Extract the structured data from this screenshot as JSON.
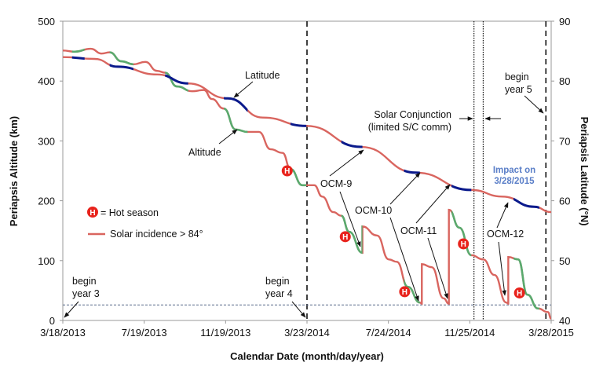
{
  "chart_data": {
    "type": "line",
    "xlabel": "Calendar Date (month/day/year)",
    "ylabel_left": "Periapsis Altitude (km)",
    "ylabel_right": "Periapsis Latitude (°N)",
    "xlim": [
      "2013-03-18",
      "2015-03-28"
    ],
    "ylim_left": [
      0,
      500
    ],
    "ylim_right": [
      40,
      90
    ],
    "x_ticks": [
      "3/18/2013",
      "7/19/2013",
      "11/19/2013",
      "3/23/2014",
      "7/24/2014",
      "11/25/2014",
      "3/28/2015"
    ],
    "y_ticks_left": [
      "0",
      "100",
      "200",
      "300",
      "400",
      "500"
    ],
    "y_ticks_right": [
      "40",
      "50",
      "60",
      "70",
      "80",
      "90"
    ],
    "grid": false,
    "colors": {
      "normal": "#d9655f",
      "hot_altitude": "#5aaa6e",
      "hot_latitude": "#0a1a8c",
      "impact_text": "#5b7fc8",
      "hot_marker": "#e8231c"
    },
    "series": [
      {
        "name": "Altitude",
        "axis": "left",
        "points": [
          [
            "2013-03-18",
            451
          ],
          [
            "2013-04-05",
            449
          ],
          [
            "2013-04-29",
            454
          ],
          [
            "2013-05-16",
            446
          ],
          [
            "2013-05-28",
            448
          ],
          [
            "2013-06-15",
            433
          ],
          [
            "2013-07-03",
            428
          ],
          [
            "2013-07-21",
            432
          ],
          [
            "2013-08-08",
            417
          ],
          [
            "2013-08-20",
            414
          ],
          [
            "2013-09-07",
            391
          ],
          [
            "2013-09-30",
            383
          ],
          [
            "2013-10-18",
            385
          ],
          [
            "2013-10-30",
            370
          ],
          [
            "2013-11-17",
            354
          ],
          [
            "2013-12-05",
            319
          ],
          [
            "2013-12-23",
            315
          ],
          [
            "2014-01-09",
            315
          ],
          [
            "2014-01-27",
            286
          ],
          [
            "2014-02-14",
            280
          ],
          [
            "2014-02-26",
            253
          ],
          [
            "2014-03-16",
            226
          ],
          [
            "2014-04-03",
            226
          ],
          [
            "2014-04-15",
            207
          ],
          [
            "2014-05-02",
            181
          ],
          [
            "2014-05-14",
            175
          ],
          [
            "2014-05-26",
            148
          ],
          [
            "2014-06-15",
            113
          ],
          [
            "2014-06-15",
            157
          ],
          [
            "2014-07-07",
            142
          ],
          [
            "2014-07-25",
            102
          ],
          [
            "2014-08-06",
            98
          ],
          [
            "2014-08-23",
            56
          ],
          [
            "2014-09-10",
            30
          ],
          [
            "2014-09-13",
            28
          ],
          [
            "2014-09-13",
            94
          ],
          [
            "2014-09-28",
            89
          ],
          [
            "2014-10-16",
            37
          ],
          [
            "2014-10-24",
            28
          ],
          [
            "2014-10-24",
            185
          ],
          [
            "2014-11-09",
            155
          ],
          [
            "2014-11-27",
            109
          ],
          [
            "2014-12-15",
            102
          ],
          [
            "2015-01-01",
            76
          ],
          [
            "2015-01-19",
            30
          ],
          [
            "2015-01-22",
            28
          ],
          [
            "2015-01-22",
            106
          ],
          [
            "2015-02-06",
            102
          ],
          [
            "2015-02-20",
            43
          ],
          [
            "2015-03-08",
            20
          ],
          [
            "2015-03-23",
            14
          ],
          [
            "2015-03-28",
            3
          ]
        ]
      },
      {
        "name": "Latitude",
        "axis": "right",
        "points": [
          [
            "2013-03-18",
            84.0
          ],
          [
            "2013-05-05",
            83.7
          ],
          [
            "2013-06-09",
            82.4
          ],
          [
            "2013-08-08",
            81.1
          ],
          [
            "2013-09-24",
            79.6
          ],
          [
            "2013-11-23",
            77.1
          ],
          [
            "2014-01-15",
            73.9
          ],
          [
            "2014-03-22",
            72.5
          ],
          [
            "2014-06-13",
            69.0
          ],
          [
            "2014-09-04",
            64.7
          ],
          [
            "2014-11-27",
            61.8
          ],
          [
            "2015-01-13",
            60.7
          ],
          [
            "2015-03-02",
            59.0
          ],
          [
            "2015-03-28",
            58.1
          ]
        ]
      }
    ],
    "hot_seasons": [
      [
        "2013-04-01",
        "2013-04-20"
      ],
      [
        "2013-05-28",
        "2013-07-03"
      ],
      [
        "2013-08-20",
        "2013-09-24"
      ],
      [
        "2013-11-17",
        "2013-12-23"
      ],
      [
        "2014-02-26",
        "2014-03-22"
      ],
      [
        "2014-05-14",
        "2014-06-15"
      ],
      [
        "2014-08-17",
        "2014-09-10"
      ],
      [
        "2014-10-28",
        "2014-11-27"
      ],
      [
        "2015-01-30",
        "2015-03-10"
      ]
    ],
    "hot_markers": [
      [
        "2014-02-21",
        250
      ],
      [
        "2014-05-20",
        140
      ],
      [
        "2014-08-18",
        48
      ],
      [
        "2014-11-15",
        128
      ],
      [
        "2015-02-08",
        46
      ]
    ],
    "vertical_dashed": [
      "2014-03-23",
      "2015-03-20"
    ],
    "vertical_dotted": [
      "2014-12-01",
      "2014-12-15"
    ],
    "horizontal_dotted_km": 26,
    "annotations": {
      "latitude": "Latitude",
      "altitude": "Altitude",
      "year3": [
        "begin",
        "year 3"
      ],
      "year4": [
        "begin",
        "year 4"
      ],
      "year5": [
        "begin",
        "year 5"
      ],
      "conjunction": [
        "Solar Conjunction",
        "(limited S/C comm)"
      ],
      "impact": [
        "Impact on",
        "3/28/2015"
      ],
      "ocm9": "OCM-9",
      "ocm10": "OCM-10",
      "ocm11": "OCM-11",
      "ocm12": "OCM-12"
    },
    "legend": {
      "hot_marker_letter": "H",
      "hot_label": "= Hot season",
      "incidence_label": "Solar incidence > 84°"
    }
  }
}
